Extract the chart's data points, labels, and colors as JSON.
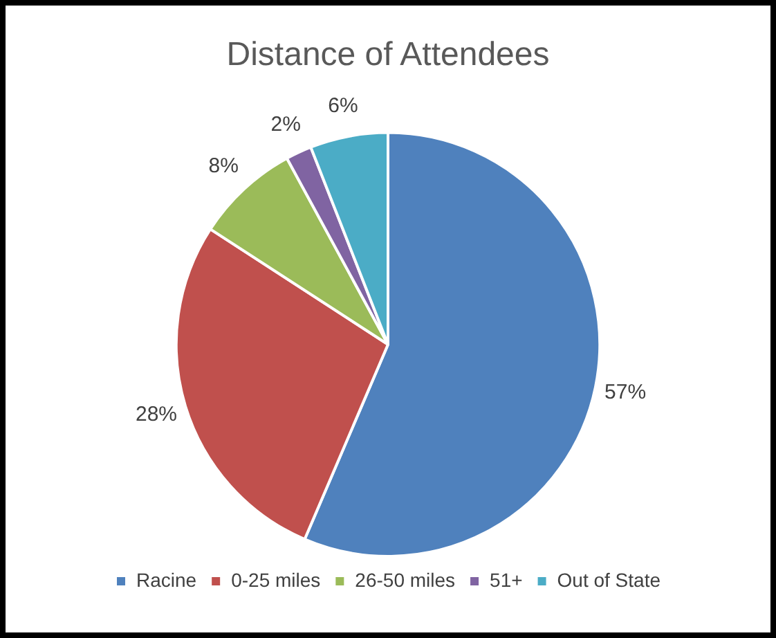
{
  "chart_data": {
    "type": "pie",
    "title": "Distance of Attendees",
    "categories": [
      "Racine",
      "0-25 miles",
      "26-50 miles",
      "51+",
      "Out of State"
    ],
    "values": [
      57,
      28,
      8,
      2,
      6
    ],
    "colors": [
      "#4f81bd",
      "#c0504d",
      "#9bbb59",
      "#8064a2",
      "#4bacc6"
    ],
    "value_labels": [
      "57%",
      "28%",
      "8%",
      "2%",
      "6%"
    ],
    "legend": "bottom"
  }
}
